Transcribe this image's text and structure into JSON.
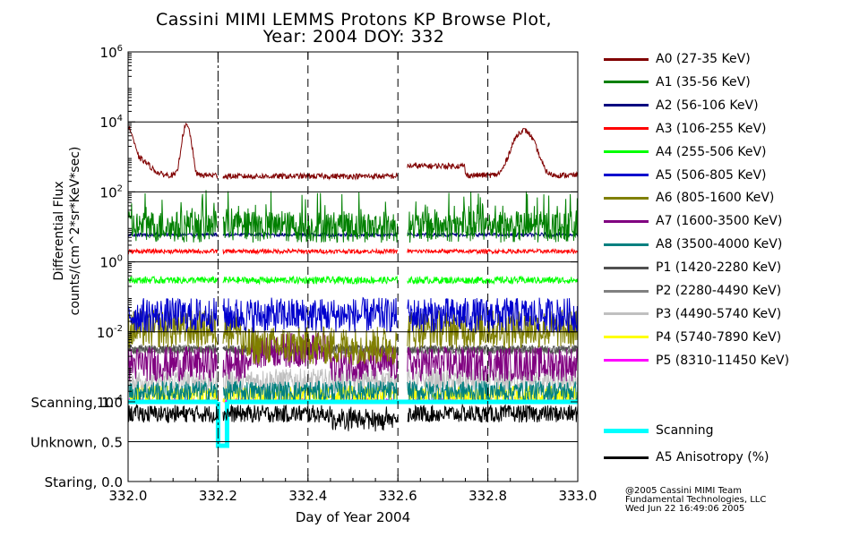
{
  "chart_data": {
    "type": "line",
    "title": "Cassini MIMI LEMMS Protons KP Browse Plot,",
    "subtitle": "Year: 2004 DOY: 332",
    "xlabel": "Day of Year 2004",
    "ylabel_line1": "Differential Flux",
    "ylabel_line2": "counts/(cm^2*sr*KeV*sec)",
    "ylim": [
      0.0001,
      1000000
    ],
    "yscale": "log",
    "xlim": [
      332.0,
      333.0
    ],
    "x_ticks": [
      "332.0",
      "332.2",
      "332.4",
      "332.6",
      "332.8",
      "333.0"
    ],
    "y_ticks": [
      {
        "base": "10",
        "exp": "6"
      },
      {
        "base": "10",
        "exp": "4"
      },
      {
        "base": "10",
        "exp": "2"
      },
      {
        "base": "10",
        "exp": "0"
      },
      {
        "base": "10",
        "exp": "-2"
      },
      {
        "base": "10",
        "exp": "-4"
      }
    ],
    "series": [
      {
        "name": "A0 (27-35 KeV)",
        "color": "#800000",
        "level": 400,
        "note": "peaks near 332.0, 332.13, 332.88"
      },
      {
        "name": "A1 (35-56 KeV)",
        "color": "#008000",
        "level": 10
      },
      {
        "name": "A2 (56-106 KeV)",
        "color": "#000080",
        "level": 6
      },
      {
        "name": "A3 (106-255 KeV)",
        "color": "#ff0000",
        "level": 2
      },
      {
        "name": "A4 (255-506 KeV)",
        "color": "#00ff00",
        "level": 0.3
      },
      {
        "name": "A5 (506-805 KeV)",
        "color": "#0000cd",
        "level": 0.03
      },
      {
        "name": "A6 (805-1600 KeV)",
        "color": "#808000",
        "level": 0.01
      },
      {
        "name": "A7 (1600-3500 KeV)",
        "color": "#800080",
        "level": 0.002
      },
      {
        "name": "A8 (3500-4000 KeV)",
        "color": "#008080",
        "level": 0.0003
      },
      {
        "name": "P1 (1420-2280 KeV)",
        "color": "#505050",
        "level": 0.003
      },
      {
        "name": "P2 (2280-4490 KeV)",
        "color": "#808080",
        "level": 0.003
      },
      {
        "name": "P3 (4490-5740 KeV)",
        "color": "#c0c0c0",
        "level": 0.0005
      },
      {
        "name": "P4 (5740-7890 KeV)",
        "color": "#ffff00",
        "level": 0.00015
      },
      {
        "name": "P5 (8310-11450 KeV)",
        "color": "#ff00ff",
        "level": 0.0001
      }
    ],
    "lower_panel": {
      "y_labels": [
        "Scanning, 1.0",
        "Unknown, 0.5",
        "Staring, 0.0"
      ],
      "ylim": [
        0.0,
        1.0
      ],
      "series": [
        {
          "name": "Scanning",
          "color": "#00ffff",
          "value": 1.0,
          "dip": {
            "x": [
              332.2,
              332.22
            ],
            "value": 0.45
          }
        },
        {
          "name": "A5 Anisotropy (%)",
          "color": "#000000",
          "level": 0.85
        }
      ]
    },
    "gaps": [
      [
        332.2,
        332.21
      ],
      [
        332.6,
        332.62
      ]
    ],
    "grid": true
  },
  "credits": [
    "@2005 Cassini MIMI Team",
    "Fundamental Technologies, LLC",
    "Wed Jun 22 16:49:06 2005"
  ]
}
